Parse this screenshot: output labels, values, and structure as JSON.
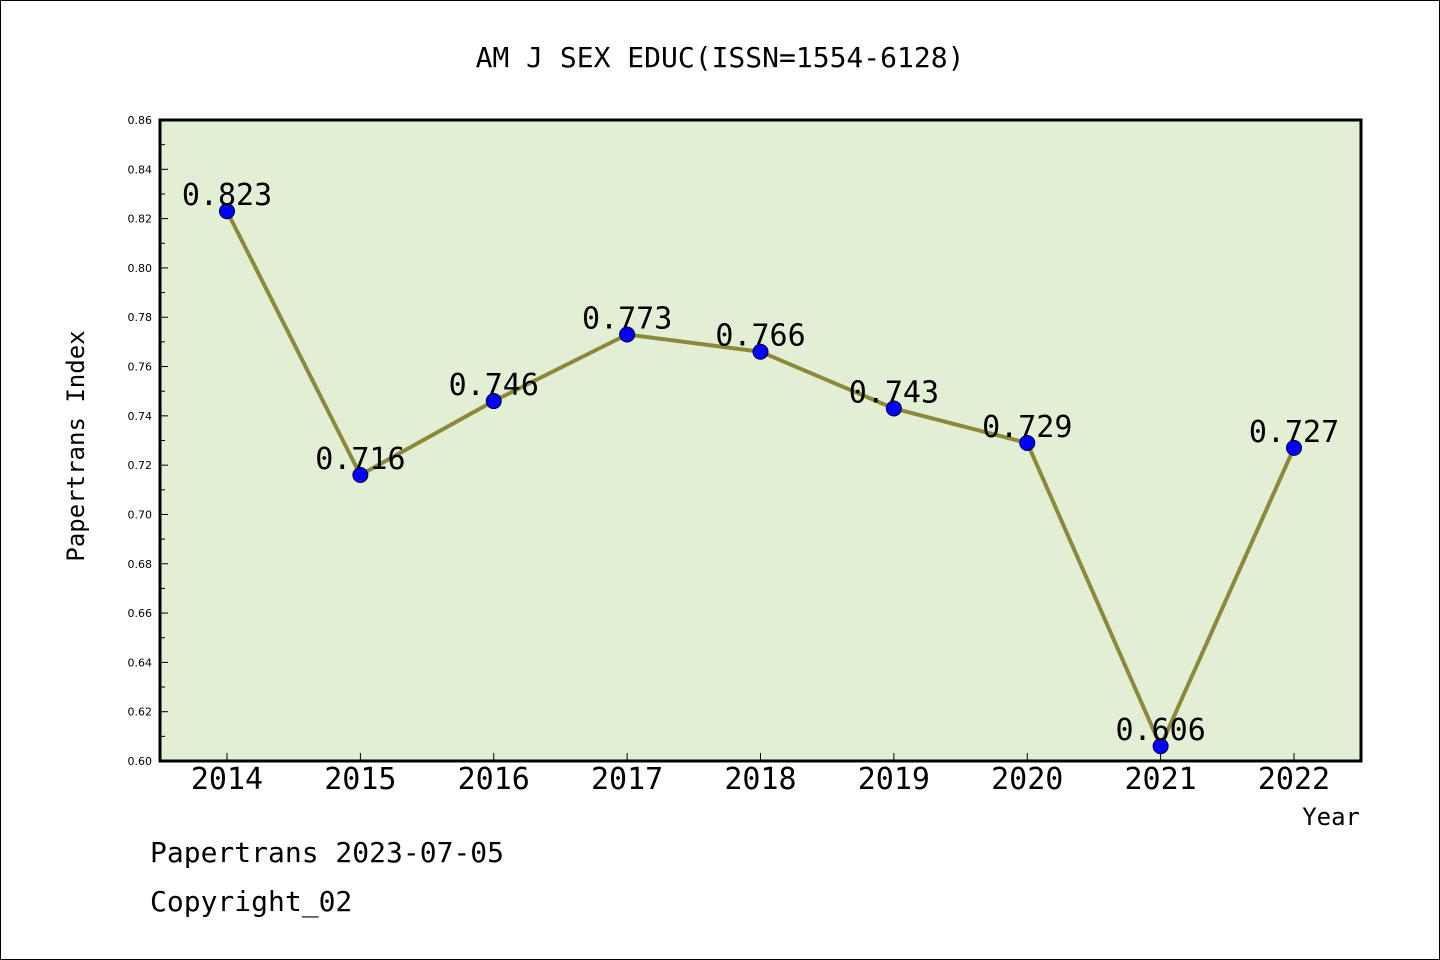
{
  "chart_data": {
    "type": "line",
    "title": "AM J SEX EDUC(ISSN=1554-6128)",
    "xlabel": "Year",
    "ylabel": "Papertrans Index",
    "categories": [
      "2014",
      "2015",
      "2016",
      "2017",
      "2018",
      "2019",
      "2020",
      "2021",
      "2022"
    ],
    "series": [
      {
        "values": [
          0.823,
          0.716,
          0.746,
          0.773,
          0.766,
          0.743,
          0.729,
          0.606,
          0.727
        ]
      }
    ],
    "data_labels": [
      "0.823",
      "0.716",
      "0.746",
      "0.773",
      "0.766",
      "0.743",
      "0.729",
      "0.606",
      "0.727"
    ],
    "ylim": [
      0.6,
      0.86
    ],
    "yticks": [
      "0.60",
      "0.62",
      "0.64",
      "0.66",
      "0.68",
      "0.70",
      "0.72",
      "0.74",
      "0.76",
      "0.78",
      "0.80",
      "0.82",
      "0.84",
      "0.86"
    ],
    "grid": false,
    "legend": "none",
    "colors": {
      "plot_background": "#e2efd4",
      "line": "#8c8a3a",
      "marker": "#0000ff",
      "axes": "#000000"
    }
  },
  "footer": {
    "line1": "Papertrans 2023-07-05",
    "line2": "Copyright_02"
  }
}
